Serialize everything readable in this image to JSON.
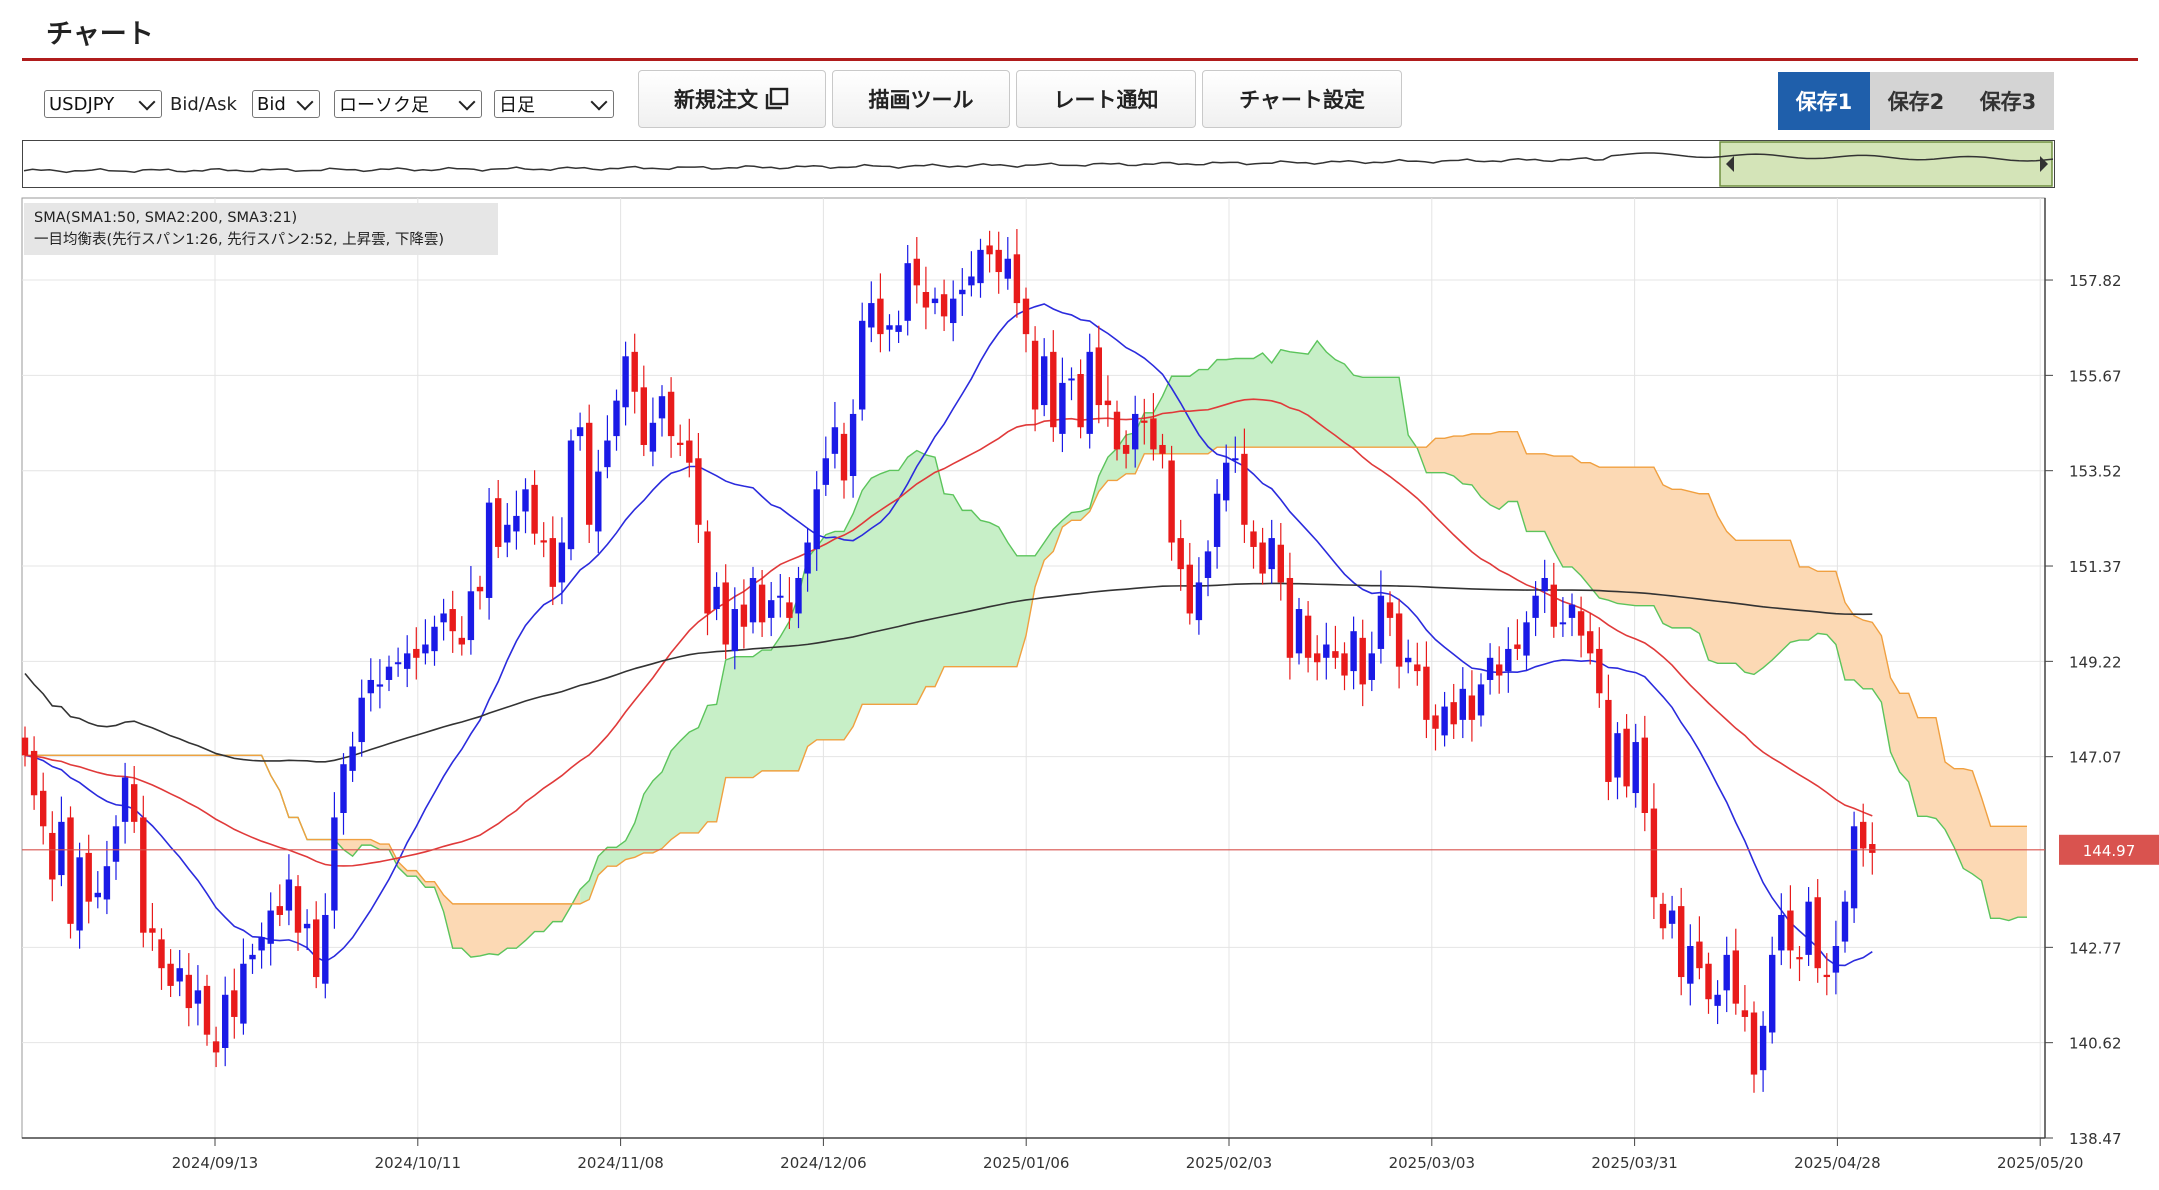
{
  "page": {
    "title": "チャート"
  },
  "toolbar": {
    "symbol": "USDJPY",
    "bidask_label": "Bid/Ask",
    "bidask_value": "Bid",
    "chart_type": "ローソク足",
    "timeframe": "日足",
    "buttons": {
      "new_order": "新規注文",
      "drawing_tools": "描画ツール",
      "rate_alert": "レート通知",
      "chart_settings": "チャート設定"
    },
    "saves": [
      "保存1",
      "保存2",
      "保存3"
    ],
    "active_save": 0
  },
  "legend": {
    "sma": "SMA(SMA1:50, SMA2:200, SMA3:21)",
    "ichimoku": "一目均衡表(先行スパン1:26, 先行スパン2:52, 上昇雲, 下降雲)"
  },
  "colors": {
    "bull": "#1a1ae6",
    "bear": "#e81b1b",
    "sma_fast": "#2b2bdd",
    "sma_mid": "#e03a3a",
    "sma_slow": "#333333",
    "cloud_up": "#c7efc7",
    "cloud_down": "#fcd9b4",
    "current_price": "#d9534f",
    "title_rule": "#b01c1c",
    "active_save": "#1f5fab"
  },
  "chart_data": {
    "type": "candlestick",
    "instrument": "USDJPY",
    "timeframe": "日足",
    "y_ticks": [
      "157.82",
      "155.67",
      "153.52",
      "151.37",
      "149.22",
      "147.07",
      "144.97",
      "142.77",
      "140.62",
      "138.47"
    ],
    "y_range": [
      138.47,
      159.0
    ],
    "x_labels": [
      "2024/09/13",
      "2024/10/11",
      "2024/11/08",
      "2024/12/06",
      "2025/01/06",
      "2025/02/03",
      "2025/03/03",
      "2025/03/31",
      "2025/04/28",
      "2025/05/20"
    ],
    "current_price": "144.97",
    "closes": [
      147.1,
      146.2,
      145.5,
      144.3,
      145.6,
      143.3,
      144.8,
      143.8,
      144.0,
      144.6,
      145.5,
      146.6,
      145.6,
      143.1,
      143.1,
      142.3,
      141.9,
      142.3,
      141.4,
      141.8,
      140.8,
      140.4,
      141.7,
      141.2,
      142.4,
      142.6,
      143.0,
      143.6,
      143.5,
      144.3,
      143.1,
      143.3,
      142.1,
      143.5,
      145.7,
      146.9,
      147.3,
      148.4,
      148.8,
      148.7,
      149.1,
      149.2,
      149.4,
      149.3,
      149.6,
      150.0,
      150.3,
      149.9,
      149.6,
      150.8,
      150.8,
      152.8,
      151.8,
      152.3,
      152.5,
      153.1,
      152.1,
      151.9,
      150.9,
      151.9,
      154.2,
      154.5,
      152.3,
      153.5,
      154.2,
      155.1,
      156.1,
      155.3,
      154.1,
      154.6,
      155.2,
      154.3,
      154.1,
      153.7,
      152.3,
      150.3,
      150.9,
      149.6,
      150.4,
      150.0,
      151.1,
      150.1,
      150.6,
      150.7,
      150.2,
      151.1,
      151.9,
      153.1,
      153.8,
      154.5,
      153.3,
      154.8,
      156.9,
      157.3,
      156.6,
      156.8,
      156.8,
      158.2,
      157.7,
      157.2,
      157.4,
      157.0,
      157.4,
      157.6,
      157.9,
      158.5,
      158.4,
      158.0,
      158.3,
      157.3,
      156.6,
      154.9,
      156.1,
      154.5,
      155.5,
      155.6,
      154.5,
      156.2,
      155.0,
      155.0,
      154.0,
      153.9,
      154.8,
      154.6,
      154.0,
      153.9,
      151.9,
      151.3,
      150.3,
      151.0,
      151.7,
      153.0,
      153.7,
      153.8,
      152.3,
      151.8,
      151.2,
      152.0,
      151.0,
      149.3,
      150.4,
      149.3,
      149.2,
      149.6,
      149.3,
      148.9,
      149.9,
      148.7,
      149.4,
      150.7,
      150.2,
      149.1,
      149.3,
      149.0,
      147.9,
      147.7,
      148.2,
      147.8,
      148.6,
      147.9,
      148.7,
      149.3,
      148.9,
      149.5,
      149.5,
      150.1,
      150.7,
      151.1,
      150.0,
      150.1,
      150.5,
      149.8,
      149.4,
      148.5,
      146.5,
      147.6,
      146.4,
      147.4,
      145.8,
      143.9,
      143.2,
      143.6,
      142.1,
      142.8,
      142.3,
      141.6,
      141.7,
      142.6,
      141.5,
      141.2,
      139.9,
      141.0,
      142.6,
      143.5,
      142.7,
      142.5,
      143.8,
      142.3,
      142.1,
      142.8,
      143.8,
      145.5,
      145.0,
      144.9
    ]
  }
}
